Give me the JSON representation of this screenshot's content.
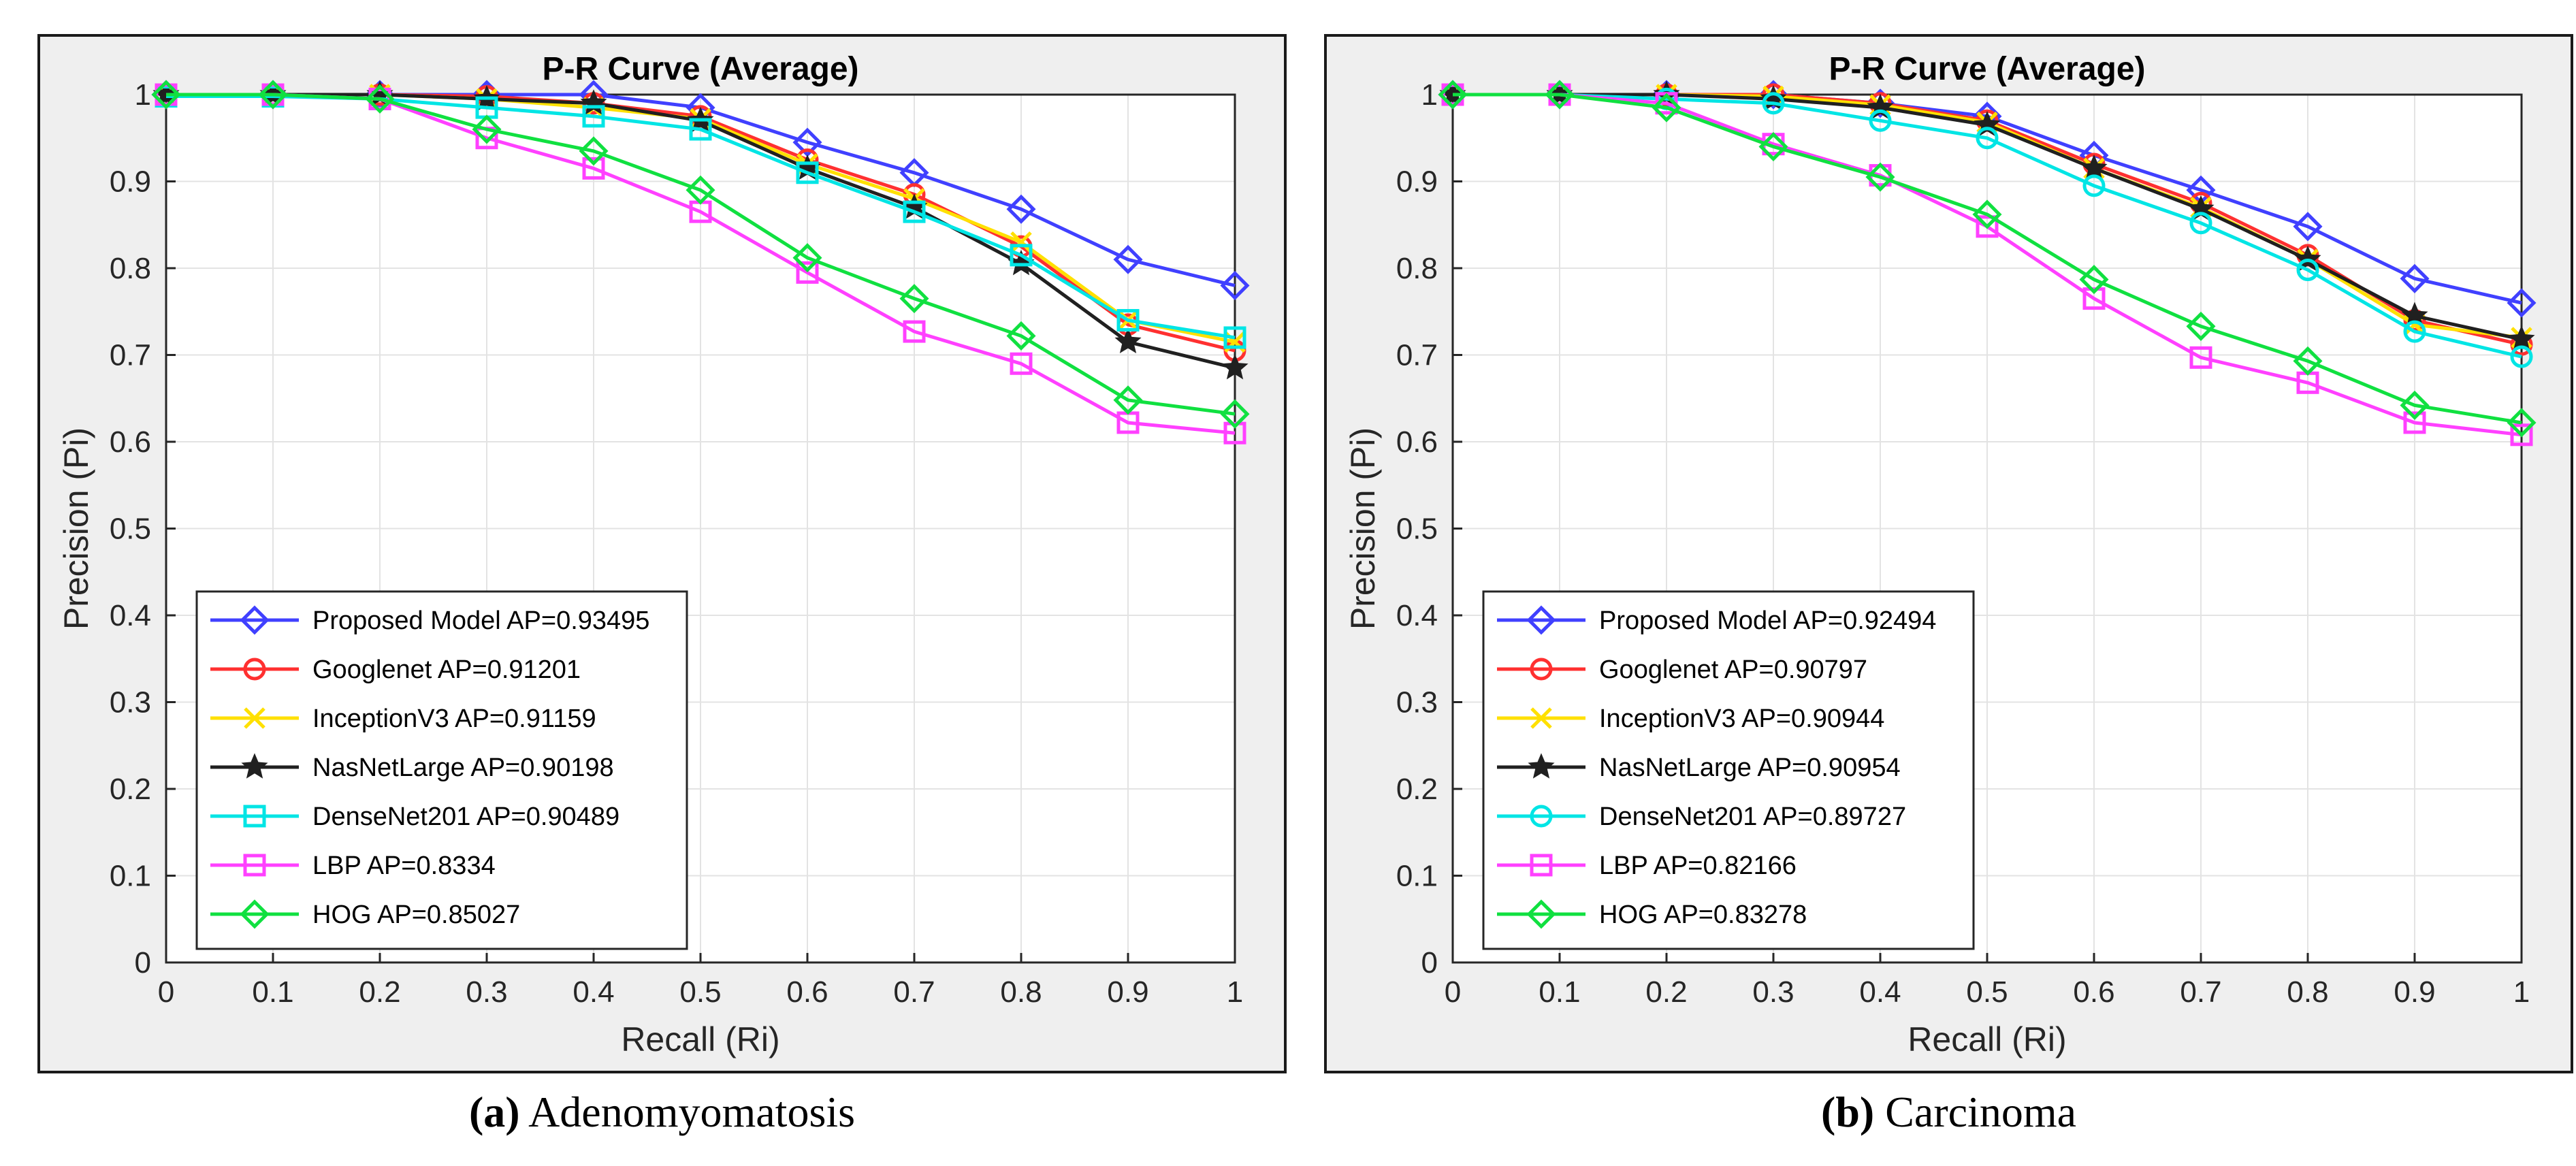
{
  "chart_data": [
    {
      "type": "line",
      "title": "P-R Curve (Average)",
      "xlabel": "Recall (Ri)",
      "ylabel": "Precision (Pi)",
      "xlim": [
        0,
        1
      ],
      "ylim": [
        0,
        1
      ],
      "grid": true,
      "legend_position": "bottom-left",
      "x": [
        0,
        0.1,
        0.2,
        0.3,
        0.4,
        0.5,
        0.6,
        0.7,
        0.8,
        0.9,
        1
      ],
      "xticks": [
        "0",
        "0.1",
        "0.2",
        "0.3",
        "0.4",
        "0.5",
        "0.6",
        "0.7",
        "0.8",
        "0.9",
        "1"
      ],
      "yticks": [
        "0",
        "0.1",
        "0.2",
        "0.3",
        "0.4",
        "0.5",
        "0.6",
        "0.7",
        "0.8",
        "0.9",
        "1"
      ],
      "caption_label": "(a)",
      "caption_text": "Adenomyomatosis",
      "series": [
        {
          "name": "Proposed Model AP=0.93495",
          "color": "#4040ff",
          "marker": "diamond",
          "values": [
            1.0,
            1.0,
            1.0,
            1.0,
            1.0,
            0.985,
            0.945,
            0.91,
            0.868,
            0.81,
            0.78
          ]
        },
        {
          "name": "Googlenet AP=0.91201",
          "color": "#ff3030",
          "marker": "circle",
          "values": [
            1.0,
            1.0,
            1.0,
            0.998,
            0.99,
            0.975,
            0.925,
            0.885,
            0.825,
            0.735,
            0.705
          ]
        },
        {
          "name": "InceptionV3 AP=0.91159",
          "color": "#ffe000",
          "marker": "cross",
          "values": [
            1.0,
            1.0,
            1.0,
            0.995,
            0.985,
            0.972,
            0.92,
            0.88,
            0.83,
            0.74,
            0.715
          ]
        },
        {
          "name": "NasNetLarge AP=0.90198",
          "color": "#202020",
          "marker": "star",
          "values": [
            1.0,
            1.0,
            1.0,
            0.995,
            0.99,
            0.97,
            0.915,
            0.87,
            0.805,
            0.715,
            0.685
          ]
        },
        {
          "name": "DenseNet201 AP=0.90489",
          "color": "#00e5e5",
          "marker": "square",
          "values": [
            0.998,
            0.998,
            0.995,
            0.985,
            0.975,
            0.96,
            0.91,
            0.865,
            0.815,
            0.74,
            0.72
          ]
        },
        {
          "name": "LBP AP=0.8334",
          "color": "#ff40ff",
          "marker": "square",
          "values": [
            1.0,
            1.0,
            0.995,
            0.95,
            0.915,
            0.865,
            0.795,
            0.727,
            0.69,
            0.622,
            0.61
          ]
        },
        {
          "name": "HOG AP=0.85027",
          "color": "#10e040",
          "marker": "diamond",
          "values": [
            1.0,
            1.0,
            0.995,
            0.96,
            0.935,
            0.89,
            0.812,
            0.765,
            0.722,
            0.648,
            0.632
          ]
        }
      ]
    },
    {
      "type": "line",
      "title": "P-R Curve (Average)",
      "xlabel": "Recall (Ri)",
      "ylabel": "Precision (Pi)",
      "xlim": [
        0,
        1
      ],
      "ylim": [
        0,
        1
      ],
      "grid": true,
      "legend_position": "bottom-left",
      "x": [
        0,
        0.1,
        0.2,
        0.3,
        0.4,
        0.5,
        0.6,
        0.7,
        0.8,
        0.9,
        1
      ],
      "xticks": [
        "0",
        "0.1",
        "0.2",
        "0.3",
        "0.4",
        "0.5",
        "0.6",
        "0.7",
        "0.8",
        "0.9",
        "1"
      ],
      "yticks": [
        "0",
        "0.1",
        "0.2",
        "0.3",
        "0.4",
        "0.5",
        "0.6",
        "0.7",
        "0.8",
        "0.9",
        "1"
      ],
      "caption_label": "(b)",
      "caption_text": "Carcinoma",
      "series": [
        {
          "name": "Proposed Model AP=0.92494",
          "color": "#4040ff",
          "marker": "diamond",
          "values": [
            1.0,
            1.0,
            1.0,
            1.0,
            0.99,
            0.975,
            0.93,
            0.89,
            0.848,
            0.788,
            0.76
          ]
        },
        {
          "name": "Googlenet AP=0.90797",
          "color": "#ff3030",
          "marker": "circle",
          "values": [
            1.0,
            1.0,
            1.0,
            1.0,
            0.99,
            0.97,
            0.92,
            0.875,
            0.815,
            0.74,
            0.712
          ]
        },
        {
          "name": "InceptionV3 AP=0.90944",
          "color": "#ffe000",
          "marker": "cross",
          "values": [
            1.0,
            1.0,
            1.0,
            0.998,
            0.988,
            0.968,
            0.915,
            0.87,
            0.81,
            0.735,
            0.72
          ]
        },
        {
          "name": "NasNetLarge AP=0.90954",
          "color": "#202020",
          "marker": "star",
          "values": [
            1.0,
            1.0,
            1.0,
            0.995,
            0.985,
            0.965,
            0.915,
            0.868,
            0.81,
            0.745,
            0.718
          ]
        },
        {
          "name": "DenseNet201 AP=0.89727",
          "color": "#00e5e5",
          "marker": "circle",
          "values": [
            1.0,
            1.0,
            0.995,
            0.99,
            0.97,
            0.95,
            0.895,
            0.852,
            0.798,
            0.727,
            0.698
          ]
        },
        {
          "name": "LBP AP=0.82166",
          "color": "#ff40ff",
          "marker": "square",
          "values": [
            1.0,
            1.0,
            0.99,
            0.943,
            0.907,
            0.848,
            0.765,
            0.697,
            0.668,
            0.622,
            0.608
          ]
        },
        {
          "name": "HOG AP=0.83278",
          "color": "#10e040",
          "marker": "diamond",
          "values": [
            1.0,
            1.0,
            0.985,
            0.94,
            0.905,
            0.862,
            0.787,
            0.733,
            0.693,
            0.642,
            0.622
          ]
        }
      ]
    }
  ]
}
